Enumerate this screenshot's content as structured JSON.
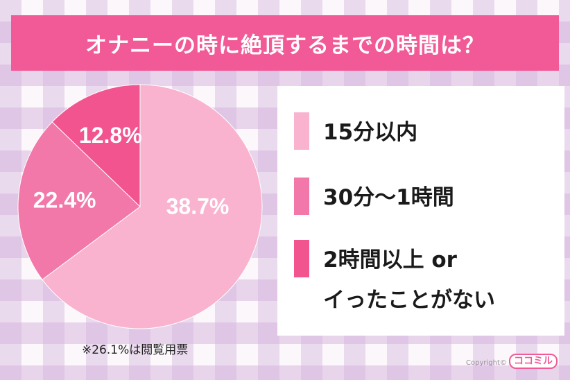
{
  "title": "オナニーの時に絶頂するまでの時間は？",
  "chart_data": {
    "type": "pie",
    "title": "オナニーの時に絶頂するまでの時間は？",
    "slices": [
      {
        "label": "15分以内",
        "value": 38.7,
        "display": "38.7%",
        "color": "#f9b3cf"
      },
      {
        "label": "30分〜1時間",
        "value": 22.4,
        "display": "22.4%",
        "color": "#f178a9"
      },
      {
        "label": "2時間以上 or\nイったことがない",
        "value": 12.8,
        "display": "12.8%",
        "color": "#f1548f"
      }
    ]
  },
  "note": "※26.1%は閲覧用票",
  "copyright": "Copyright©",
  "logo_text": "ココミル"
}
